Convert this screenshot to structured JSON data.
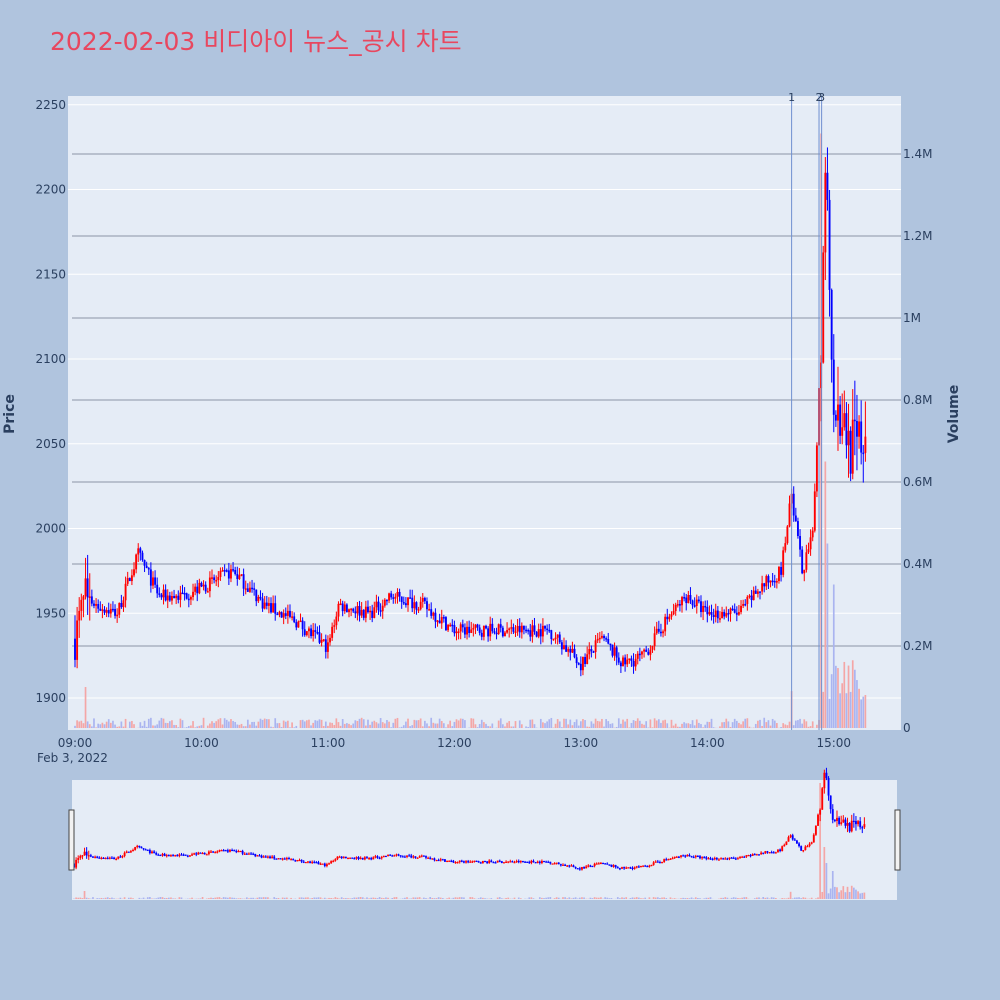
{
  "title": "2022-02-03 비디아이 뉴스_공시 차트",
  "colors": {
    "background": "#b0c4de",
    "plot_bg": "#e5ecf6",
    "up": "#ff0000",
    "down": "#0000ff",
    "volume_up": "#f4a6a6",
    "volume_down": "#aab4f0",
    "event_line": "#6f8fd0",
    "grid": "#ffffff",
    "volume_grid": "#8a93a5",
    "title": "#e8475f"
  },
  "chart_data": {
    "type": "candlestick",
    "x_axis": {
      "ticks": [
        "09:00",
        "10:00",
        "11:00",
        "12:00",
        "13:00",
        "14:00",
        "15:00"
      ],
      "date_label": "Feb 3, 2022",
      "range": [
        "09:00",
        "15:30"
      ]
    },
    "y_axis": {
      "label": "Price",
      "range": [
        1880,
        2255
      ],
      "ticks": [
        1900,
        1950,
        2000,
        2050,
        2100,
        2150,
        2200,
        2250
      ]
    },
    "y2_axis": {
      "label": "Volume",
      "range": [
        0,
        1550000
      ],
      "ticks": [
        0,
        200000,
        400000,
        600000,
        800000,
        1000000,
        1200000,
        1400000
      ],
      "tick_labels": [
        "0",
        "0.2M",
        "0.4M",
        "0.6M",
        "0.8M",
        "1M",
        "1.2M",
        "1.4M"
      ]
    },
    "events": [
      {
        "label": "1",
        "time": "14:40"
      },
      {
        "label": "2",
        "time": "14:53"
      },
      {
        "label": "3",
        "time": "14:54"
      }
    ],
    "key_points": [
      [
        "09:00",
        1935
      ],
      [
        "09:05",
        1960
      ],
      [
        "09:10",
        1955
      ],
      [
        "09:20",
        1950
      ],
      [
        "09:30",
        1985
      ],
      [
        "09:40",
        1960
      ],
      [
        "09:50",
        1960
      ],
      [
        "10:00",
        1965
      ],
      [
        "10:15",
        1975
      ],
      [
        "10:30",
        1955
      ],
      [
        "10:45",
        1945
      ],
      [
        "11:00",
        1930
      ],
      [
        "11:05",
        1955
      ],
      [
        "11:20",
        1950
      ],
      [
        "11:30",
        1960
      ],
      [
        "11:45",
        1955
      ],
      [
        "12:00",
        1940
      ],
      [
        "12:30",
        1940
      ],
      [
        "12:45",
        1940
      ],
      [
        "13:00",
        1920
      ],
      [
        "13:10",
        1935
      ],
      [
        "13:20",
        1920
      ],
      [
        "13:30",
        1925
      ],
      [
        "13:40",
        1945
      ],
      [
        "13:50",
        1960
      ],
      [
        "14:00",
        1950
      ],
      [
        "14:15",
        1950
      ],
      [
        "14:25",
        1965
      ],
      [
        "14:35",
        1975
      ],
      [
        "14:40",
        2020
      ],
      [
        "14:45",
        1975
      ],
      [
        "14:50",
        1995
      ],
      [
        "14:54",
        2110
      ],
      [
        "14:56",
        2220
      ],
      [
        "15:00",
        2080
      ],
      [
        "15:05",
        2060
      ],
      [
        "15:10",
        2045
      ],
      [
        "15:15",
        2055
      ]
    ],
    "volume_spikes": [
      [
        "14:54",
        1450000
      ],
      [
        "14:56",
        650000
      ],
      [
        "14:57",
        450000
      ],
      [
        "15:00",
        350000
      ],
      [
        "14:40",
        90000
      ],
      [
        "09:05",
        100000
      ]
    ]
  }
}
